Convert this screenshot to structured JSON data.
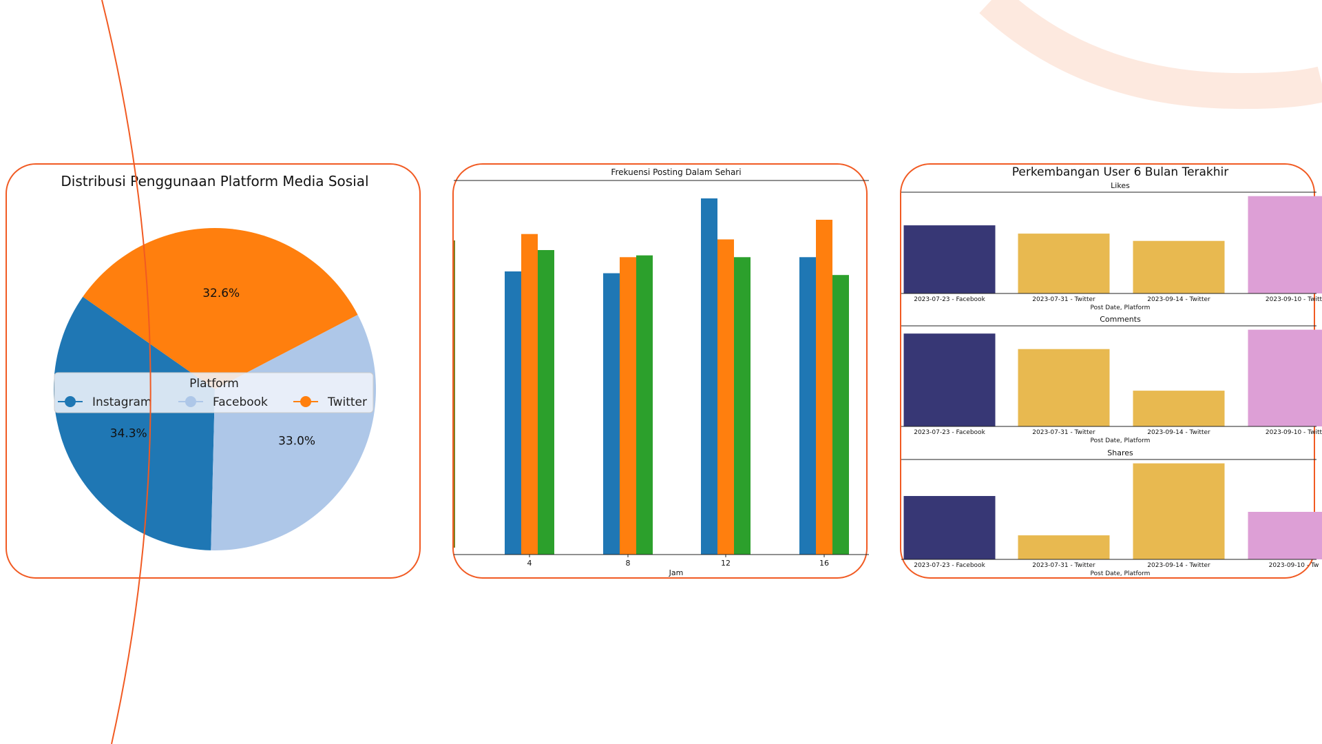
{
  "colors": {
    "accent": "#f15a22",
    "deco_arc": "#fde9df",
    "instagram": "#1f77b4",
    "facebook": "#aec7e8",
    "twitter": "#ff7f0e",
    "green": "#2ca02c",
    "navy": "#373775",
    "gold": "#e8b950",
    "pink": "#dd9fd6"
  },
  "chart_data": [
    {
      "type": "pie",
      "title": "Distribusi Penggunaan Platform Media Sosial",
      "legend": {
        "title": "Platform",
        "placement": "center"
      },
      "labels": [
        "Instagram",
        "Facebook",
        "Twitter"
      ],
      "values": [
        34.3,
        33.0,
        32.6
      ],
      "value_labels": [
        "34.3%",
        "33.0%",
        "32.6%"
      ],
      "colors": [
        "#1f77b4",
        "#aec7e8",
        "#ff7f0e"
      ]
    },
    {
      "type": "bar",
      "title": "Frekuensi Posting Dalam Sehari",
      "xlabel": "Jam",
      "ylabel": "",
      "categories": [
        "4",
        "8",
        "12",
        "16"
      ],
      "series": [
        {
          "values": [
            79.5,
            79.0,
            100,
            83.5
          ],
          "color": "#1f77b4"
        },
        {
          "values": [
            90,
            83.5,
            88.5,
            94
          ],
          "color": "#ff7f0e"
        },
        {
          "values": [
            85.5,
            84,
            83.5,
            78.5
          ],
          "color": "#2ca02c"
        }
      ],
      "ylim": [
        0,
        105
      ]
    },
    {
      "type": "bar",
      "title": "Perkembangan User 6 Bulan Terakhir",
      "subplots": [
        {
          "title": "Likes",
          "xlabel": "Post Date, Platform",
          "categories": [
            "2023-07-23 - Facebook",
            "2023-07-31 - Twitter",
            "2023-09-14 - Twitter",
            "2023-09-10 - Twitt"
          ],
          "values": [
            70,
            61.5,
            54,
            100
          ],
          "colors": [
            "#373775",
            "#e8b950",
            "#e8b950",
            "#dd9fd6"
          ],
          "ylim": [
            0,
            104
          ]
        },
        {
          "title": "Comments",
          "xlabel": "Post Date, Platform",
          "categories": [
            "2023-07-23 - Facebook",
            "2023-07-31 - Twitter",
            "2023-09-14 - Twitter",
            "2023-09-10 - Twitt"
          ],
          "values": [
            96,
            80,
            37,
            100
          ],
          "colors": [
            "#373775",
            "#e8b950",
            "#e8b950",
            "#dd9fd6"
          ],
          "ylim": [
            0,
            104
          ]
        },
        {
          "title": "Shares",
          "xlabel": "Post Date, Platform",
          "categories": [
            "2023-07-23 - Facebook",
            "2023-07-31 - Twitter",
            "2023-09-14 - Twitter",
            "2023-09-10 - Tw"
          ],
          "values": [
            66,
            25,
            100,
            49.5
          ],
          "colors": [
            "#373775",
            "#e8b950",
            "#e8b950",
            "#dd9fd6"
          ],
          "ylim": [
            0,
            104
          ]
        }
      ]
    }
  ]
}
